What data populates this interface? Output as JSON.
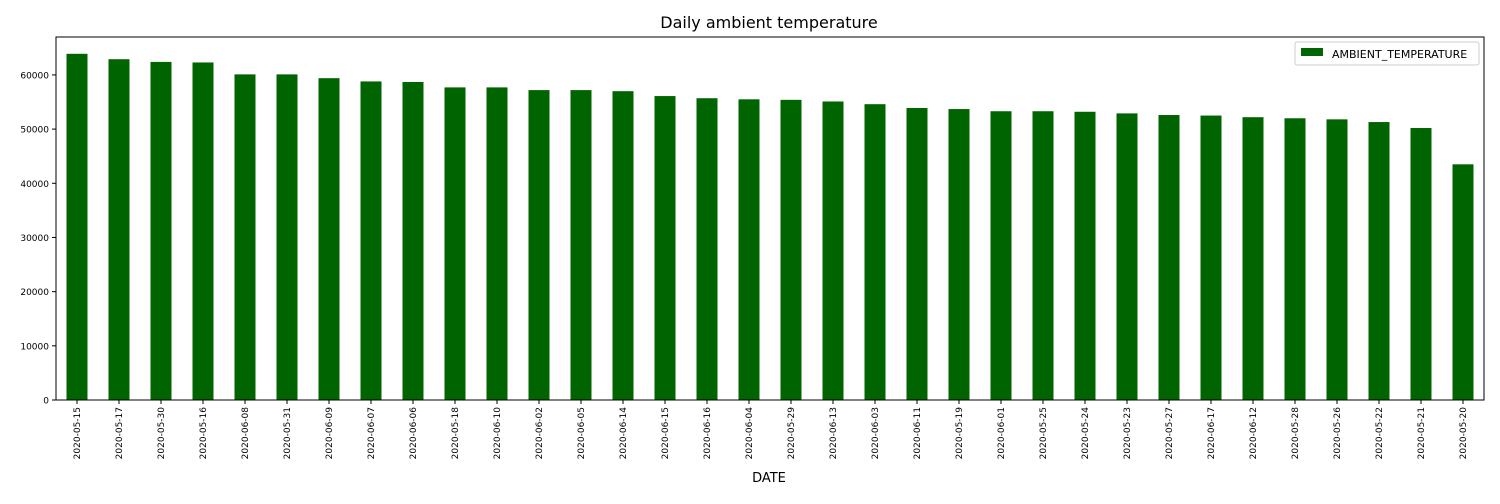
{
  "chart_data": {
    "type": "bar",
    "title": "Daily ambient temperature",
    "xlabel": "DATE",
    "ylabel": "",
    "categories": [
      "2020-05-15",
      "2020-05-17",
      "2020-05-30",
      "2020-05-16",
      "2020-06-08",
      "2020-05-31",
      "2020-06-09",
      "2020-06-07",
      "2020-06-06",
      "2020-05-18",
      "2020-06-10",
      "2020-06-02",
      "2020-06-05",
      "2020-06-14",
      "2020-06-15",
      "2020-06-16",
      "2020-06-04",
      "2020-05-29",
      "2020-06-13",
      "2020-06-03",
      "2020-06-11",
      "2020-05-19",
      "2020-06-01",
      "2020-05-25",
      "2020-05-24",
      "2020-05-23",
      "2020-05-27",
      "2020-06-17",
      "2020-06-12",
      "2020-05-28",
      "2020-05-26",
      "2020-05-22",
      "2020-05-21",
      "2020-05-20"
    ],
    "series": [
      {
        "name": "AMBIENT_TEMPERATURE",
        "color": "#006400",
        "values": [
          63900,
          62900,
          62400,
          62300,
          60100,
          60100,
          59400,
          58800,
          58700,
          57700,
          57700,
          57200,
          57200,
          57000,
          56100,
          55700,
          55500,
          55400,
          55100,
          54600,
          53900,
          53700,
          53300,
          53300,
          53200,
          52900,
          52600,
          52500,
          52200,
          52000,
          51800,
          51300,
          50200,
          43500
        ]
      }
    ],
    "yticks": [
      0,
      10000,
      20000,
      30000,
      40000,
      50000,
      60000
    ],
    "ylim": [
      0,
      67000
    ],
    "legend_position": "top-right",
    "grid": false
  }
}
